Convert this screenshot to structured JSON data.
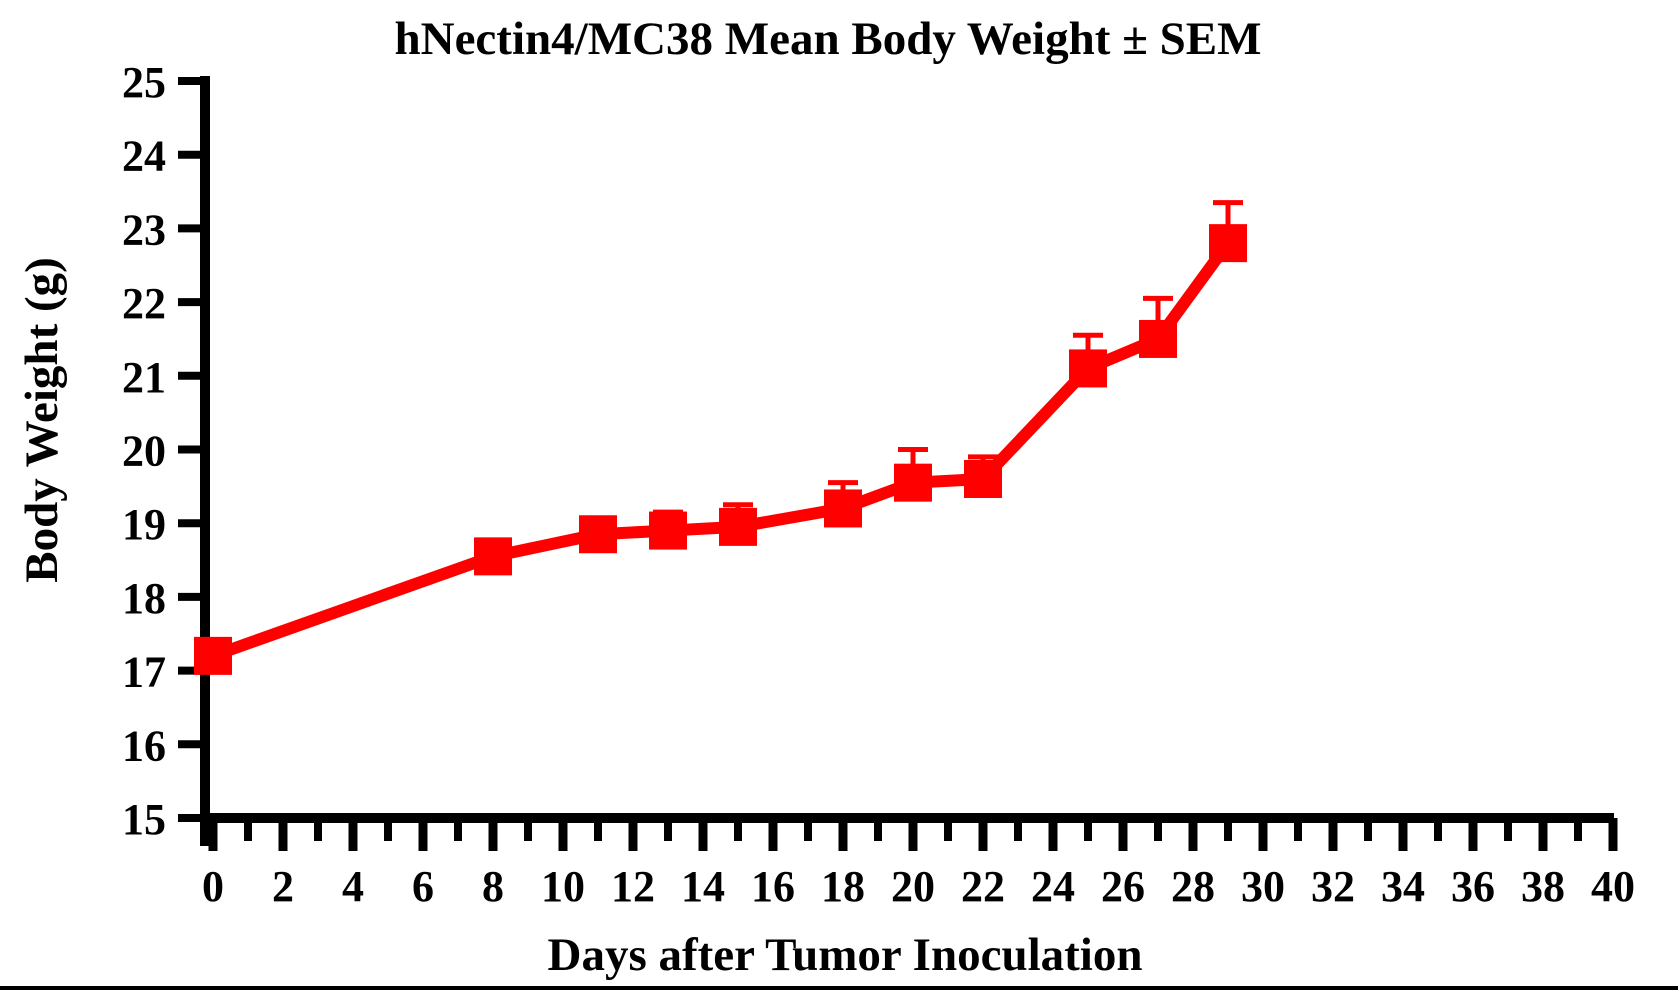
{
  "chart_data": {
    "type": "line",
    "title": "hNectin4/MC38 Mean Body Weight ± SEM",
    "xlabel": "Days after Tumor Inoculation",
    "ylabel": "Body Weight (g)",
    "xlim": [
      0,
      40
    ],
    "ylim": [
      15,
      25
    ],
    "grid": false,
    "legend": "none",
    "x_tick_labels": [
      "0",
      "2",
      "4",
      "6",
      "8",
      "10",
      "12",
      "14",
      "16",
      "18",
      "20",
      "22",
      "24",
      "26",
      "28",
      "30",
      "32",
      "34",
      "36",
      "38",
      "40"
    ],
    "x_minor_tick_step": 1,
    "y_tick_labels": [
      "15",
      "16",
      "17",
      "18",
      "19",
      "20",
      "21",
      "22",
      "23",
      "24",
      "25"
    ],
    "series": [
      {
        "name": "hNectin4/MC38 Mean Body Weight",
        "color": "#FF0000",
        "marker": "square",
        "error_bars": "SEM, upper only",
        "x": [
          0,
          8,
          11,
          13,
          15,
          18,
          20,
          22,
          25,
          27,
          29
        ],
        "y": [
          17.2,
          18.55,
          18.85,
          18.9,
          18.95,
          19.2,
          19.55,
          19.6,
          21.1,
          21.5,
          22.8
        ],
        "sem": [
          0,
          0,
          0,
          0.25,
          0.3,
          0.35,
          0.45,
          0.3,
          0.45,
          0.55,
          0.55
        ]
      }
    ]
  },
  "colors": {
    "series": "#FF0000",
    "axis": "#000000",
    "background": "#FFFFFF"
  }
}
